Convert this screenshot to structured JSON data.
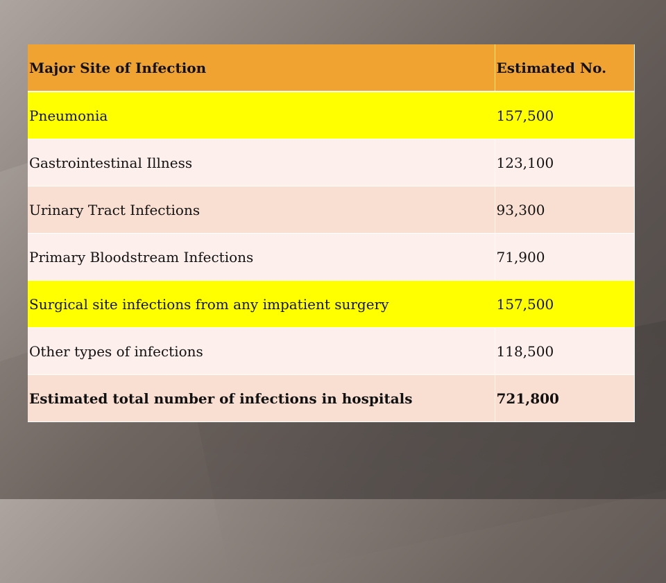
{
  "table": {
    "headers": [
      "Major Site of Infection",
      "Estimated No."
    ],
    "rows": [
      {
        "site": "Pneumonia",
        "count": "157,500",
        "style": "yellow"
      },
      {
        "site": "Gastrointestinal Illness",
        "count": "123,100",
        "style": "light"
      },
      {
        "site": "Urinary Tract Infections",
        "count": "93,300",
        "style": "peach"
      },
      {
        "site": "Primary Bloodstream Infections",
        "count": "71,900",
        "style": "light"
      },
      {
        "site": "Surgical site infections from any impatient surgery",
        "count": "157,500",
        "style": "yellow"
      },
      {
        "site": "Other types of infections",
        "count": "118,500",
        "style": "light"
      }
    ],
    "total": {
      "site": "Estimated total number of infections in hospitals",
      "count": "721,800",
      "style": "peach"
    }
  },
  "colors": {
    "header": "#f0a331",
    "highlight": "#ffff00",
    "row_light": "#fdf0ec",
    "row_peach": "#f9dfd1"
  }
}
